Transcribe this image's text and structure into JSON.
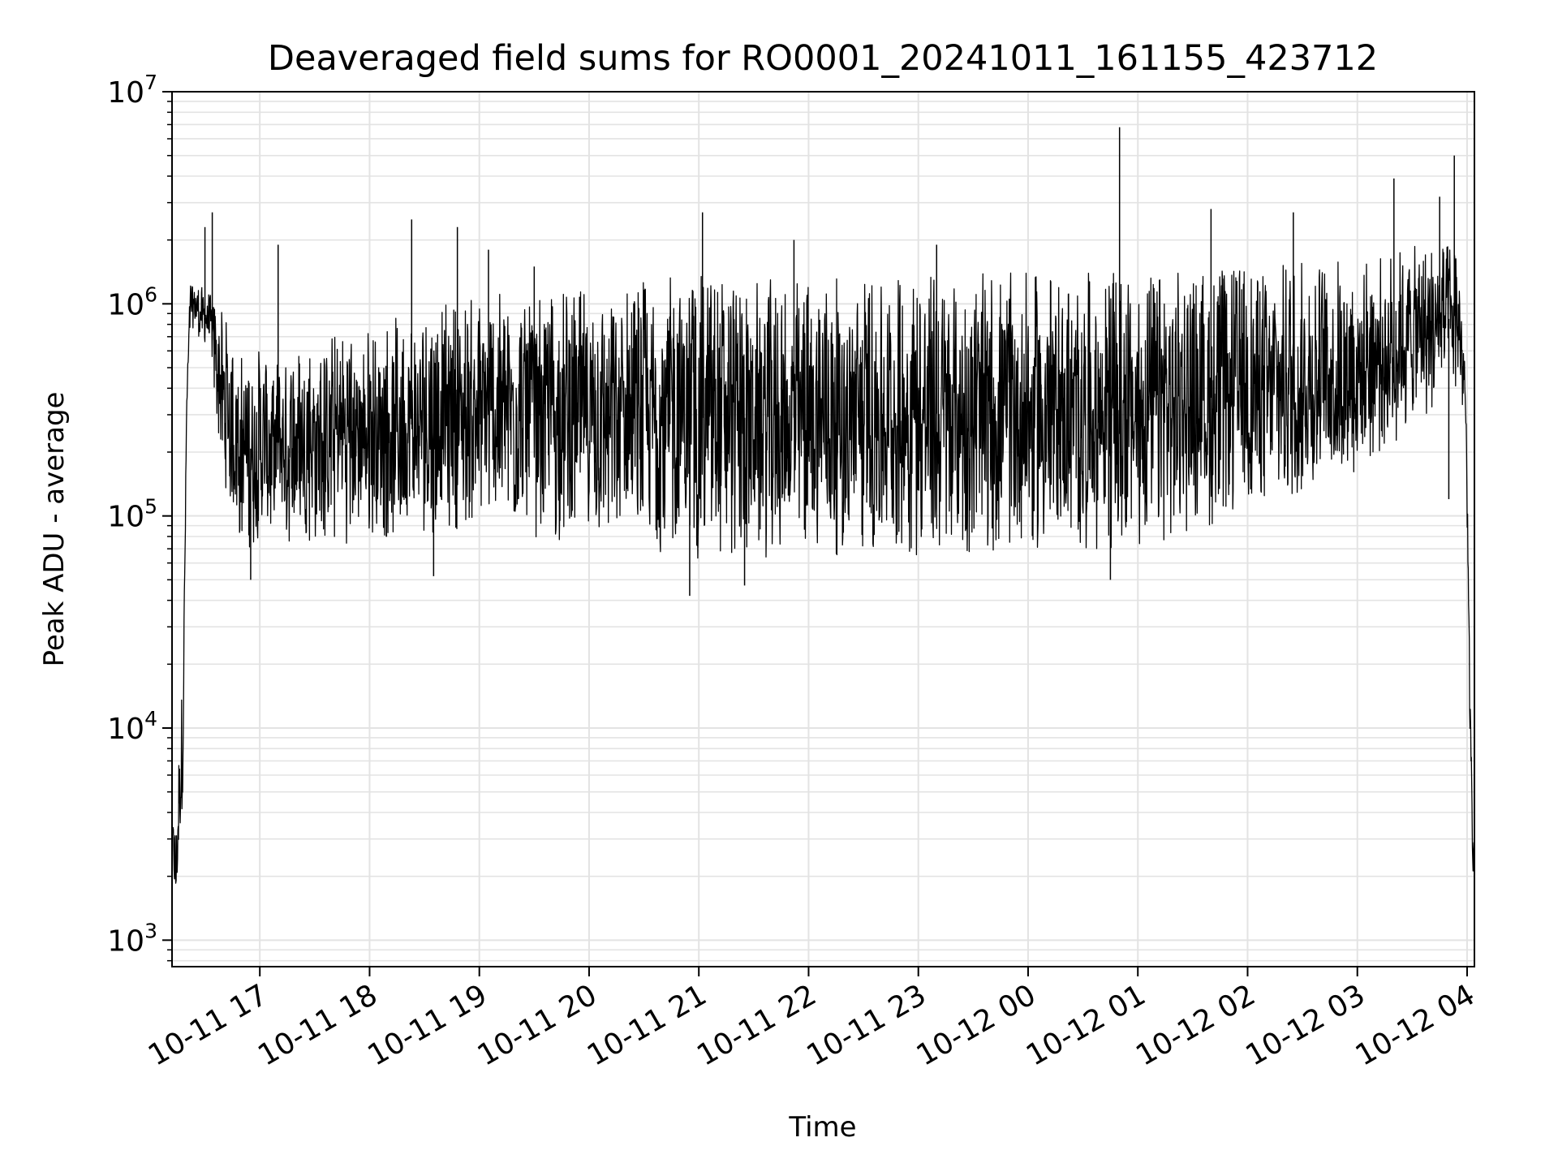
{
  "chart_data": {
    "type": "line",
    "title": "Deaveraged field sums for RO0001_20241011_161155_423712",
    "xlabel": "Time",
    "ylabel": "Peak ADU - average",
    "y_scale": "log",
    "ylim": [
      750,
      10000000
    ],
    "xlim": [
      "2024-10-11 16:12",
      "2024-10-12 04:04"
    ],
    "grid": true,
    "x_ticks": [
      {
        "value": "2024-10-11 17:00",
        "label": "10-11 17"
      },
      {
        "value": "2024-10-11 18:00",
        "label": "10-11 18"
      },
      {
        "value": "2024-10-11 19:00",
        "label": "10-11 19"
      },
      {
        "value": "2024-10-11 20:00",
        "label": "10-11 20"
      },
      {
        "value": "2024-10-11 21:00",
        "label": "10-11 21"
      },
      {
        "value": "2024-10-11 22:00",
        "label": "10-11 22"
      },
      {
        "value": "2024-10-11 23:00",
        "label": "10-11 23"
      },
      {
        "value": "2024-10-12 00:00",
        "label": "10-12 00"
      },
      {
        "value": "2024-10-12 01:00",
        "label": "10-12 01"
      },
      {
        "value": "2024-10-12 02:00",
        "label": "10-12 02"
      },
      {
        "value": "2024-10-12 03:00",
        "label": "10-12 03"
      },
      {
        "value": "2024-10-12 04:00",
        "label": "10-12 04"
      }
    ],
    "y_ticks": [
      {
        "value": 1000,
        "base": "10",
        "exp": "3"
      },
      {
        "value": 10000,
        "base": "10",
        "exp": "4"
      },
      {
        "value": 100000,
        "base": "10",
        "exp": "5"
      },
      {
        "value": 1000000,
        "base": "10",
        "exp": "6"
      },
      {
        "value": 10000000,
        "base": "10",
        "exp": "7"
      }
    ],
    "series": [
      {
        "color": "#000000",
        "envelope": [
          {
            "x": "2024-10-11 16:12",
            "low": 3000,
            "high": 3500
          },
          {
            "x": "2024-10-11 16:14",
            "low": 1100,
            "high": 3800
          },
          {
            "x": "2024-10-11 16:18",
            "low": 5000,
            "high": 20000
          },
          {
            "x": "2024-10-11 16:20",
            "low": 250000,
            "high": 400000
          },
          {
            "x": "2024-10-11 16:22",
            "low": 800000,
            "high": 1300000
          },
          {
            "x": "2024-10-11 16:32",
            "low": 600000,
            "high": 1150000
          },
          {
            "x": "2024-10-11 16:40",
            "low": 150000,
            "high": 900000
          },
          {
            "x": "2024-10-11 16:50",
            "low": 70000,
            "high": 600000
          },
          {
            "x": "2024-10-11 18:00",
            "low": 75000,
            "high": 800000
          },
          {
            "x": "2024-10-11 19:00",
            "low": 90000,
            "high": 1100000
          },
          {
            "x": "2024-10-11 20:00",
            "low": 70000,
            "high": 1200000
          },
          {
            "x": "2024-10-11 21:00",
            "low": 60000,
            "high": 1400000
          },
          {
            "x": "2024-10-11 22:00",
            "low": 65000,
            "high": 1300000
          },
          {
            "x": "2024-10-11 23:00",
            "low": 65000,
            "high": 1400000
          },
          {
            "x": "2024-10-12 00:00",
            "low": 70000,
            "high": 1400000
          },
          {
            "x": "2024-10-12 01:00",
            "low": 70000,
            "high": 1400000
          },
          {
            "x": "2024-10-12 02:00",
            "low": 100000,
            "high": 1500000
          },
          {
            "x": "2024-10-12 03:00",
            "low": 150000,
            "high": 1700000
          },
          {
            "x": "2024-10-12 03:55",
            "low": 400000,
            "high": 2000000
          },
          {
            "x": "2024-10-12 03:59",
            "low": 250000,
            "high": 600000
          },
          {
            "x": "2024-10-12 04:03",
            "low": 1500,
            "high": 3000
          }
        ],
        "spikes": [
          {
            "x": "2024-10-11 16:30",
            "y": 2300000
          },
          {
            "x": "2024-10-11 16:34",
            "y": 2700000
          },
          {
            "x": "2024-10-11 16:55",
            "y": 50000
          },
          {
            "x": "2024-10-11 17:10",
            "y": 1900000
          },
          {
            "x": "2024-10-11 18:23",
            "y": 2500000
          },
          {
            "x": "2024-10-11 18:35",
            "y": 52000
          },
          {
            "x": "2024-10-11 18:48",
            "y": 2300000
          },
          {
            "x": "2024-10-11 19:05",
            "y": 1800000
          },
          {
            "x": "2024-10-11 19:30",
            "y": 1500000
          },
          {
            "x": "2024-10-11 20:55",
            "y": 42000
          },
          {
            "x": "2024-10-11 21:02",
            "y": 2700000
          },
          {
            "x": "2024-10-11 21:25",
            "y": 47000
          },
          {
            "x": "2024-10-11 21:52",
            "y": 2000000
          },
          {
            "x": "2024-10-11 23:10",
            "y": 1900000
          },
          {
            "x": "2024-10-12 00:50",
            "y": 6800000
          },
          {
            "x": "2024-10-12 00:45",
            "y": 50000
          },
          {
            "x": "2024-10-12 01:40",
            "y": 2800000
          },
          {
            "x": "2024-10-12 02:25",
            "y": 2700000
          },
          {
            "x": "2024-10-12 03:20",
            "y": 3900000
          },
          {
            "x": "2024-10-12 03:45",
            "y": 3200000
          },
          {
            "x": "2024-10-12 03:50",
            "y": 120000
          },
          {
            "x": "2024-10-12 03:53",
            "y": 5000000
          }
        ]
      }
    ]
  }
}
